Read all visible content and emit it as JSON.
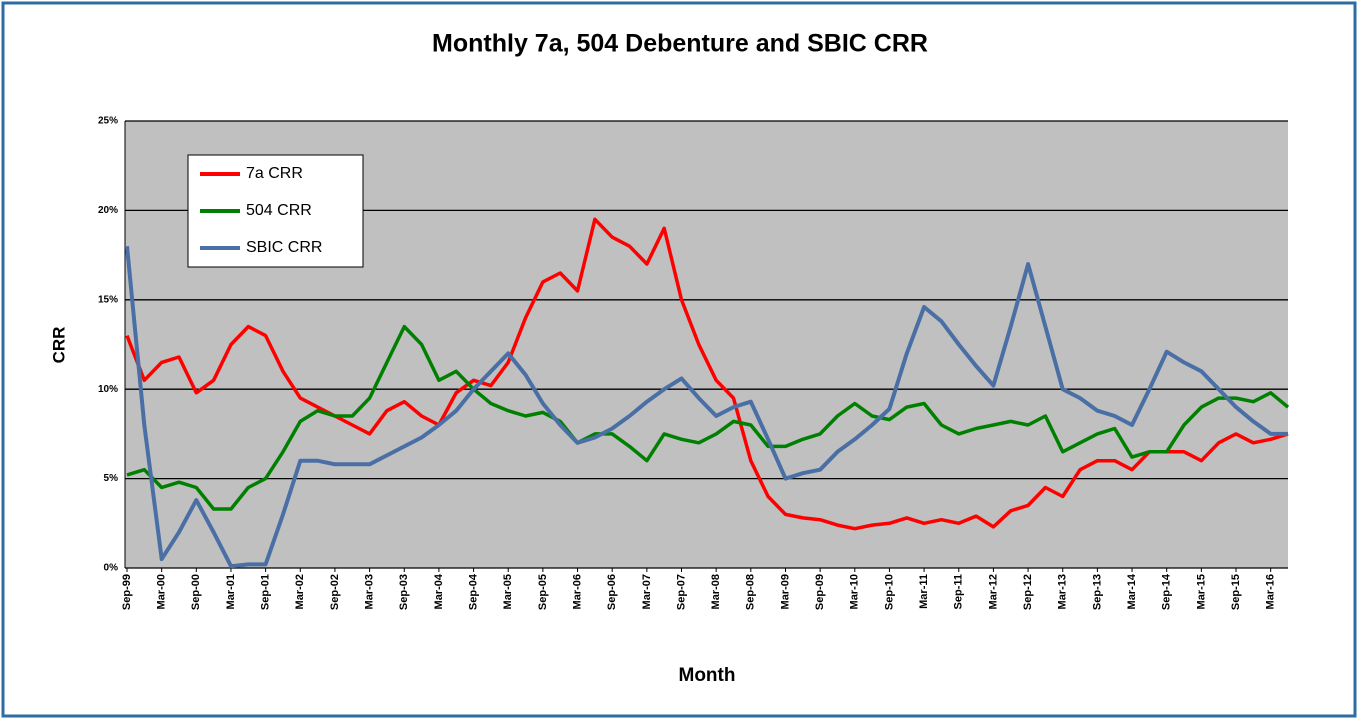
{
  "chart_data": {
    "type": "line",
    "title": "Monthly 7a, 504 Debenture and SBIC CRR",
    "x_label": "Month",
    "y_label": "CRR",
    "categories": [
      "Sep-99",
      null,
      "Mar-00",
      null,
      "Sep-00",
      null,
      "Mar-01",
      null,
      "Sep-01",
      null,
      "Mar-02",
      null,
      "Sep-02",
      null,
      "Mar-03",
      null,
      "Sep-03",
      null,
      "Mar-04",
      null,
      "Sep-04",
      null,
      "Mar-05",
      null,
      "Sep-05",
      null,
      "Mar-06",
      null,
      "Sep-06",
      null,
      "Mar-07",
      null,
      "Sep-07",
      null,
      "Mar-08",
      null,
      "Sep-08",
      null,
      "Mar-09",
      null,
      "Sep-09",
      null,
      "Mar-10",
      null,
      "Sep-10",
      null,
      "Mar-11",
      null,
      "Sep-11",
      null,
      "Mar-12",
      null,
      "Sep-12",
      null,
      "Mar-13",
      null,
      "Sep-13",
      null,
      "Mar-14",
      null,
      "Sep-14",
      null,
      "Mar-15",
      null,
      "Sep-15",
      null,
      "Mar-16",
      null
    ],
    "series": [
      {
        "name": "7a CRR",
        "color": "#ff0000",
        "values": [
          13,
          10.5,
          11.5,
          11.8,
          9.8,
          10.5,
          12.5,
          13.5,
          13,
          11,
          9.5,
          9,
          8.5,
          8,
          7.5,
          8.8,
          9.3,
          8.5,
          8,
          9.8,
          10.5,
          10.2,
          11.5,
          14,
          16,
          16.5,
          15.5,
          19.5,
          18.5,
          18,
          17,
          19,
          15,
          12.5,
          10.5,
          9.5,
          6,
          4,
          3,
          2.8,
          2.7,
          2.4,
          2.2,
          2.4,
          2.5,
          2.8,
          2.5,
          2.7,
          2.5,
          2.9,
          2.3,
          3.2,
          3.5,
          4.5,
          4,
          5.5,
          6,
          6,
          5.5,
          6.5,
          6.5,
          6.5,
          6,
          7,
          7.5,
          7,
          7.2,
          7.5
        ]
      },
      {
        "name": "504 CRR",
        "color": "#008000",
        "values": [
          5.2,
          5.5,
          4.5,
          4.8,
          4.5,
          3.3,
          3.3,
          4.5,
          5,
          6.5,
          8.2,
          8.8,
          8.5,
          8.5,
          9.5,
          11.5,
          13.5,
          12.5,
          10.5,
          11,
          10,
          9.2,
          8.8,
          8.5,
          8.7,
          8.2,
          7,
          7.5,
          7.5,
          6.8,
          6,
          7.5,
          7.2,
          7,
          7.5,
          8.2,
          8,
          6.8,
          6.8,
          7.2,
          7.5,
          8.5,
          9.2,
          8.5,
          8.3,
          9,
          9.2,
          8,
          7.5,
          7.8,
          8,
          8.2,
          8,
          8.5,
          6.5,
          7,
          7.5,
          7.8,
          6.2,
          6.5,
          6.5,
          8,
          9,
          9.5,
          9.5,
          9.3,
          9.8,
          9
        ]
      },
      {
        "name": "SBIC CRR",
        "color": "#4a6fa5",
        "values": [
          18,
          8,
          0.5,
          2,
          3.8,
          2,
          0.1,
          0.2,
          0.2,
          3,
          6,
          6,
          5.8,
          5.8,
          5.8,
          6.3,
          6.8,
          7.3,
          8,
          8.8,
          10,
          11,
          12,
          10.8,
          9.2,
          8,
          7,
          7.3,
          7.8,
          8.5,
          9.3,
          10,
          10.6,
          9.5,
          8.5,
          9,
          9.3,
          7.2,
          5,
          5.3,
          5.5,
          6.5,
          7.2,
          8,
          8.9,
          12,
          14.6,
          13.8,
          12.5,
          11.3,
          10.2,
          13.5,
          17,
          13.5,
          10,
          9.5,
          8.8,
          8.5,
          8,
          10,
          12.1,
          11.5,
          11,
          10,
          9,
          8.2,
          7.5,
          7.5
        ]
      }
    ],
    "ylim": [
      0,
      25
    ],
    "yticks": [
      {
        "value": 0,
        "label": "0%"
      },
      {
        "value": 5,
        "label": "5%"
      },
      {
        "value": 10,
        "label": "10%"
      },
      {
        "value": 15,
        "label": "15%"
      },
      {
        "value": 20,
        "label": "20%"
      },
      {
        "value": 25,
        "label": "25%"
      }
    ],
    "grid": true,
    "legend": "top-left"
  }
}
